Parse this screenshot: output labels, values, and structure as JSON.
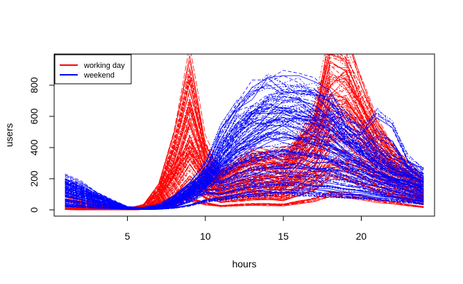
{
  "chart_data": {
    "type": "line",
    "title": "",
    "xlabel": "hours",
    "ylabel": "users",
    "xlim": [
      0.3,
      24.7
    ],
    "ylim": [
      -40,
      1000
    ],
    "xticks": [
      5,
      10,
      15,
      20
    ],
    "yticks": [
      0,
      200,
      400,
      600,
      800
    ],
    "grid": false,
    "legend_position": "top-left",
    "x": [
      1,
      2,
      3,
      4,
      5,
      6,
      7,
      8,
      9,
      10,
      11,
      12,
      13,
      14,
      15,
      16,
      17,
      18,
      19,
      20,
      21,
      22,
      23,
      24
    ],
    "series": [
      {
        "name": "working day",
        "color": "#ff0000",
        "profiles": [
          [
            15,
            8,
            5,
            3,
            3,
            20,
            120,
            380,
            760,
            360,
            200,
            260,
            320,
            300,
            270,
            420,
            560,
            940,
            880,
            680,
            480,
            350,
            260,
            170
          ],
          [
            10,
            5,
            3,
            2,
            2,
            15,
            90,
            300,
            640,
            300,
            160,
            210,
            250,
            240,
            220,
            340,
            470,
            820,
            780,
            590,
            420,
            300,
            220,
            140
          ],
          [
            8,
            4,
            2,
            1,
            2,
            12,
            70,
            240,
            520,
            250,
            130,
            170,
            200,
            190,
            180,
            280,
            390,
            690,
            650,
            500,
            350,
            250,
            180,
            110
          ],
          [
            6,
            3,
            2,
            1,
            1,
            10,
            55,
            190,
            420,
            200,
            110,
            140,
            160,
            160,
            150,
            230,
            320,
            560,
            530,
            410,
            290,
            210,
            150,
            90
          ],
          [
            5,
            2,
            1,
            1,
            1,
            8,
            40,
            140,
            310,
            160,
            90,
            110,
            130,
            130,
            120,
            180,
            250,
            430,
            410,
            320,
            230,
            170,
            120,
            70
          ],
          [
            4,
            2,
            1,
            1,
            1,
            6,
            30,
            100,
            220,
            120,
            70,
            90,
            100,
            100,
            95,
            140,
            190,
            320,
            300,
            240,
            170,
            130,
            90,
            55
          ],
          [
            3,
            1,
            1,
            0,
            1,
            4,
            20,
            60,
            140,
            80,
            50,
            60,
            70,
            70,
            65,
            95,
            130,
            210,
            200,
            160,
            120,
            90,
            60,
            35
          ],
          [
            2,
            1,
            0,
            0,
            0,
            2,
            10,
            30,
            70,
            40,
            25,
            30,
            35,
            35,
            32,
            48,
            65,
            100,
            95,
            80,
            60,
            45,
            30,
            18
          ],
          [
            60,
            40,
            25,
            12,
            8,
            30,
            100,
            250,
            380,
            250,
            230,
            280,
            340,
            330,
            320,
            400,
            520,
            700,
            760,
            600,
            420,
            310,
            230,
            160
          ],
          [
            90,
            60,
            40,
            20,
            12,
            20,
            40,
            80,
            140,
            170,
            200,
            250,
            300,
            320,
            330,
            360,
            400,
            520,
            600,
            500,
            360,
            260,
            200,
            140
          ],
          [
            30,
            20,
            12,
            6,
            4,
            10,
            25,
            60,
            100,
            110,
            120,
            150,
            170,
            180,
            175,
            190,
            210,
            260,
            300,
            260,
            200,
            150,
            110,
            70
          ],
          [
            20,
            12,
            8,
            4,
            3,
            25,
            140,
            420,
            840,
            390,
            210,
            240,
            280,
            260,
            240,
            380,
            520,
            960,
            980,
            720,
            500,
            360,
            270,
            180
          ]
        ]
      },
      {
        "name": "weekend",
        "color": "#0000ff",
        "profiles": [
          [
            180,
            140,
            90,
            50,
            15,
            12,
            25,
            70,
            140,
            220,
            420,
            560,
            640,
            690,
            700,
            680,
            650,
            600,
            500,
            420,
            340,
            280,
            240,
            200
          ],
          [
            160,
            120,
            80,
            45,
            12,
            10,
            20,
            60,
            120,
            200,
            370,
            500,
            580,
            620,
            630,
            610,
            580,
            540,
            450,
            380,
            310,
            250,
            220,
            180
          ],
          [
            140,
            100,
            70,
            40,
            10,
            8,
            18,
            50,
            110,
            180,
            320,
            440,
            510,
            550,
            560,
            540,
            520,
            480,
            400,
            340,
            280,
            230,
            200,
            160
          ],
          [
            120,
            90,
            60,
            35,
            9,
            7,
            15,
            45,
            100,
            160,
            280,
            380,
            440,
            480,
            490,
            470,
            450,
            420,
            350,
            300,
            250,
            200,
            180,
            140
          ],
          [
            100,
            75,
            50,
            30,
            8,
            6,
            12,
            40,
            90,
            140,
            240,
            320,
            370,
            400,
            410,
            400,
            380,
            350,
            300,
            260,
            220,
            180,
            160,
            120
          ],
          [
            80,
            60,
            40,
            25,
            7,
            5,
            10,
            35,
            120,
            240,
            200,
            260,
            300,
            320,
            330,
            320,
            310,
            290,
            250,
            220,
            190,
            160,
            140,
            100
          ],
          [
            60,
            45,
            30,
            20,
            6,
            4,
            8,
            30,
            100,
            200,
            160,
            200,
            230,
            250,
            260,
            250,
            240,
            230,
            200,
            180,
            150,
            130,
            110,
            80
          ],
          [
            40,
            30,
            20,
            15,
            5,
            3,
            6,
            20,
            60,
            120,
            110,
            140,
            160,
            170,
            180,
            175,
            170,
            160,
            140,
            130,
            110,
            95,
            80,
            60
          ],
          [
            25,
            18,
            12,
            9,
            4,
            2,
            4,
            12,
            30,
            60,
            70,
            90,
            100,
            110,
            115,
            112,
            108,
            100,
            90,
            85,
            75,
            65,
            55,
            40
          ],
          [
            190,
            150,
            100,
            55,
            18,
            14,
            30,
            80,
            160,
            260,
            460,
            610,
            700,
            760,
            770,
            740,
            700,
            650,
            540,
            460,
            380,
            310,
            270,
            220
          ],
          [
            170,
            130,
            90,
            50,
            14,
            10,
            22,
            55,
            100,
            170,
            300,
            420,
            530,
            620,
            690,
            700,
            680,
            620,
            520,
            460,
            560,
            500,
            300,
            230
          ]
        ]
      }
    ]
  }
}
